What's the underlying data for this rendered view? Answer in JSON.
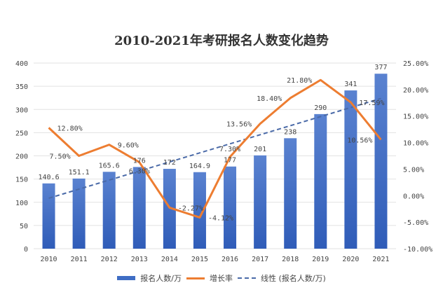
{
  "chart_data": {
    "type": "bar+line",
    "title": "2010-2021年考研报名人数变化趋势",
    "categories": [
      "2010",
      "2011",
      "2012",
      "2013",
      "2014",
      "2015",
      "2016",
      "2017",
      "2018",
      "2019",
      "2020",
      "2021"
    ],
    "series": [
      {
        "name": "报名人数/万",
        "type": "bar",
        "axis": "left",
        "color": "#3f6dc4",
        "values": [
          140.6,
          151.1,
          165.6,
          176,
          172,
          164.9,
          177,
          201,
          238,
          290,
          341,
          377
        ],
        "labels": [
          "140.6",
          "151.1",
          "165.6",
          "176",
          "172",
          "164.9",
          "177",
          "201",
          "238",
          "290",
          "341",
          "377"
        ]
      },
      {
        "name": "增长率",
        "type": "line",
        "axis": "right",
        "color": "#ed7d31",
        "values": [
          12.8,
          7.5,
          9.6,
          6.3,
          -2.27,
          -4.12,
          7.3,
          13.56,
          18.4,
          21.8,
          17.59,
          10.56
        ],
        "labels": [
          "12.80%",
          "7.50%",
          "9.60%",
          "6.30%",
          "-2.27%",
          "-4.12%",
          "7.30%",
          "13.56%",
          "18.40%",
          "21.80%",
          "17.59%",
          "10.56%"
        ]
      },
      {
        "name": "线性 (报名人数/万)",
        "type": "trendline",
        "axis": "left",
        "color": "#4a6aa8"
      }
    ],
    "ylim": [
      0,
      400
    ],
    "yticks": [
      "0",
      "50",
      "100",
      "150",
      "200",
      "250",
      "300",
      "350",
      "400"
    ],
    "y2lim": [
      -10,
      25
    ],
    "y2ticks": [
      "-10.00%",
      "-5.00%",
      "0.00%",
      "5.00%",
      "10.00%",
      "15.00%",
      "20.00%",
      "25.00%"
    ],
    "grid": true,
    "legend": "bottom"
  }
}
